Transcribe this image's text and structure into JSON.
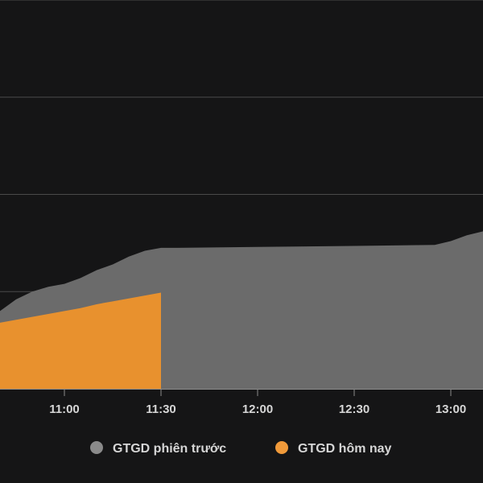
{
  "chart_data": {
    "type": "area",
    "xlabel": "",
    "ylabel": "",
    "x_ticks": [
      "11:00",
      "11:30",
      "12:00",
      "12:30",
      "13:00"
    ],
    "x_range": [
      "10:40",
      "13:10"
    ],
    "y_range": [
      0,
      4
    ],
    "y_gridlines": [
      1,
      2,
      3,
      4
    ],
    "y_tick_labels_visible": false,
    "grid": true,
    "legend_position": "bottom-center",
    "series": [
      {
        "name": "GTGD phiên trước",
        "color": "#6b6b6b",
        "x": [
          "10:40",
          "10:45",
          "10:50",
          "10:55",
          "11:00",
          "11:05",
          "11:10",
          "11:15",
          "11:20",
          "11:25",
          "11:30",
          "11:35",
          "12:00",
          "12:30",
          "12:55",
          "13:00",
          "13:05",
          "13:10"
        ],
        "values": [
          0.8,
          0.92,
          1.0,
          1.05,
          1.08,
          1.14,
          1.22,
          1.28,
          1.36,
          1.42,
          1.45,
          1.45,
          1.46,
          1.47,
          1.48,
          1.52,
          1.58,
          1.62
        ]
      },
      {
        "name": "GTGD hôm nay",
        "color": "#e8912e",
        "x": [
          "10:40",
          "10:45",
          "10:50",
          "10:55",
          "11:00",
          "11:05",
          "11:10",
          "11:15",
          "11:20",
          "11:25",
          "11:30"
        ],
        "values": [
          0.68,
          0.71,
          0.74,
          0.77,
          0.8,
          0.83,
          0.87,
          0.9,
          0.93,
          0.96,
          0.99
        ]
      }
    ]
  },
  "legend": {
    "items": [
      {
        "label": "GTGD phiên trước",
        "marker_color": "#8a8a8a"
      },
      {
        "label": "GTGD hôm nay",
        "marker_color": "#f09a3a"
      }
    ]
  }
}
